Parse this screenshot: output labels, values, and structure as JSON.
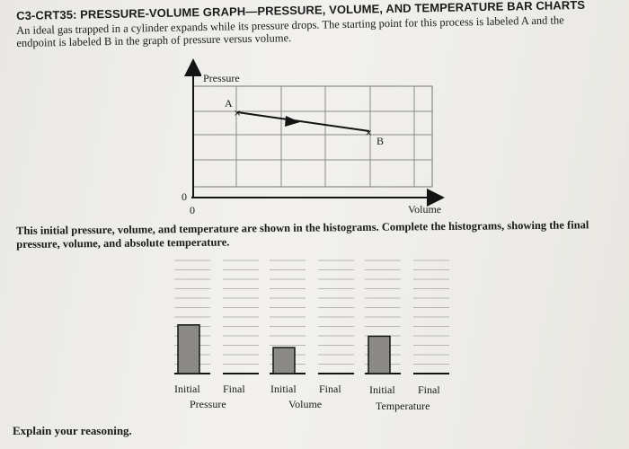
{
  "header": {
    "title": "C3-CRT35: PRESSURE-VOLUME GRAPH—PRESSURE, VOLUME, AND TEMPERATURE BAR CHARTS",
    "intro": "An ideal gas trapped in a cylinder expands while its pressure drops. The starting point for this process is labeled A and the endpoint is labeled B in the graph of pressure versus volume."
  },
  "graph": {
    "y_axis_label": "Pressure",
    "x_axis_label": "Volume",
    "origin_y": "0",
    "origin_x": "0",
    "point_a": "A",
    "point_b": "B"
  },
  "instructions": "This initial pressure, volume, and temperature are shown in the histograms. Complete the histograms, showing the final pressure, volume, and absolute temperature.",
  "histograms": [
    {
      "initial_label": "Initial",
      "final_label": "Final",
      "group_label": "Pressure",
      "initial_level": 0.43
    },
    {
      "initial_label": "Initial",
      "final_label": "Final",
      "group_label": "Volume",
      "initial_level": 0.23
    },
    {
      "initial_label": "Initial",
      "final_label": "Final",
      "group_label": "Temperature",
      "initial_level": 0.33
    }
  ],
  "footer": {
    "prompt": "Explain your reasoning."
  },
  "colors": {
    "bar_fill": "#8b8a86",
    "axis": "#141414",
    "grid": "#8a8a88"
  }
}
